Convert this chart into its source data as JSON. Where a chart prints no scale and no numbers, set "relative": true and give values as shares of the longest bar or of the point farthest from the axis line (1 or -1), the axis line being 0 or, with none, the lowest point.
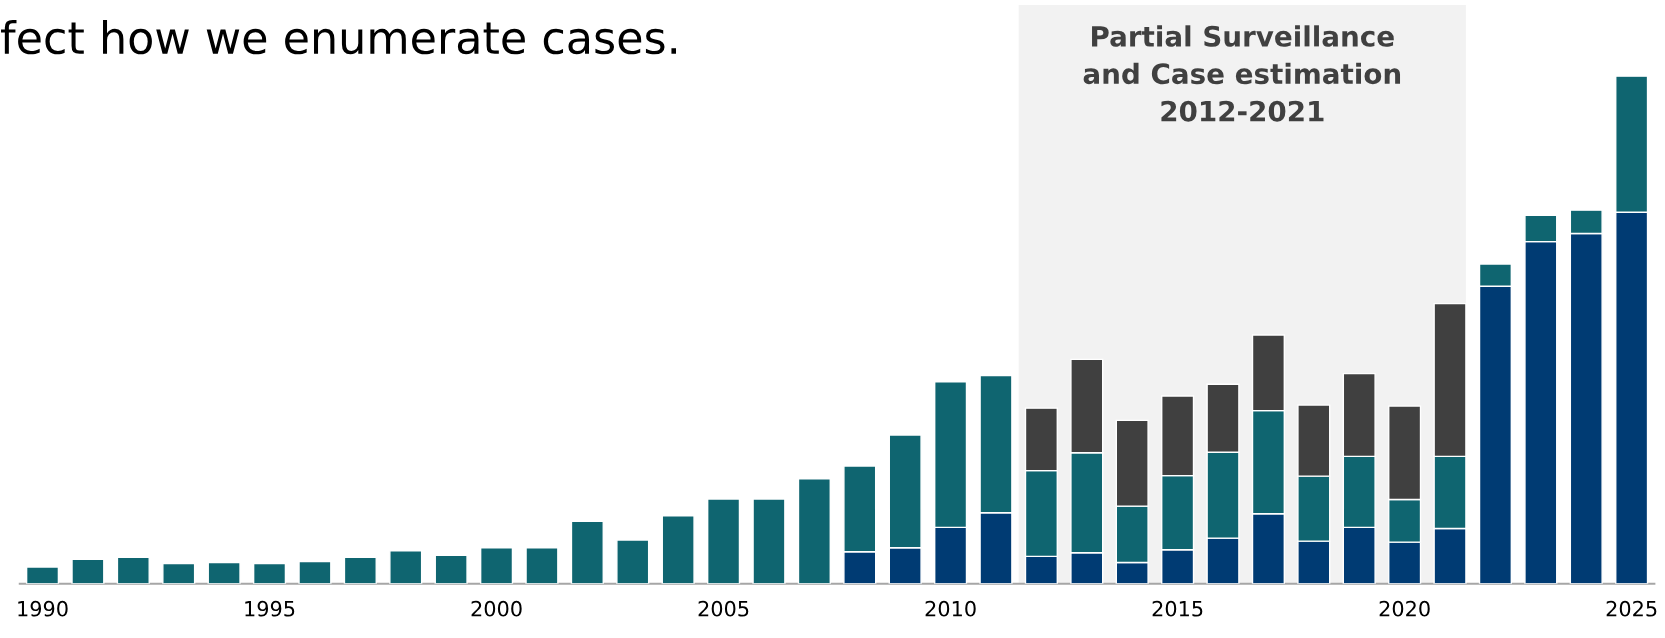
{
  "chart_data": {
    "type": "bar",
    "title": "fect how we enumerate cases.",
    "relative": true,
    "stacked": true,
    "x": [
      1990,
      1991,
      1992,
      1993,
      1994,
      1995,
      1996,
      1997,
      1998,
      1999,
      2000,
      2001,
      2002,
      2003,
      2004,
      2005,
      2006,
      2007,
      2008,
      2009,
      2010,
      2011,
      2012,
      2013,
      2014,
      2015,
      2016,
      2017,
      2018,
      2019,
      2020,
      2021,
      2022,
      2023,
      2024,
      2025
    ],
    "xlim": [
      1989.5,
      2025.5
    ],
    "xticks": [
      1990,
      1995,
      2000,
      2005,
      2010,
      2015,
      2020,
      2025
    ],
    "series": [
      {
        "color": "#003b73",
        "values": [
          null,
          null,
          null,
          null,
          null,
          null,
          null,
          null,
          null,
          null,
          null,
          null,
          null,
          null,
          null,
          null,
          null,
          null,
          0.063,
          0.071,
          0.111,
          0.14,
          0.054,
          0.061,
          0.042,
          0.067,
          0.09,
          0.138,
          0.084,
          0.111,
          0.082,
          0.109,
          0.586,
          0.674,
          0.69,
          0.732
        ]
      },
      {
        "color": "#0f6570",
        "values": [
          0.033,
          0.048,
          0.052,
          0.04,
          0.042,
          0.04,
          0.044,
          0.052,
          0.065,
          0.056,
          0.071,
          0.071,
          0.123,
          0.086,
          0.134,
          0.167,
          0.167,
          0.207,
          0.169,
          0.222,
          0.287,
          0.27,
          0.169,
          0.197,
          0.111,
          0.146,
          0.169,
          0.203,
          0.128,
          0.14,
          0.084,
          0.142,
          0.044,
          0.052,
          0.046,
          0.268
        ]
      },
      {
        "color": "#404040",
        "values": [
          null,
          null,
          null,
          null,
          null,
          null,
          null,
          null,
          null,
          null,
          null,
          null,
          null,
          null,
          null,
          null,
          null,
          null,
          null,
          null,
          null,
          null,
          0.123,
          0.184,
          0.169,
          0.157,
          0.134,
          0.149,
          0.14,
          0.163,
          0.184,
          0.301,
          null,
          null,
          null,
          null
        ]
      }
    ],
    "bands": [
      {
        "axis": "x",
        "from": 2011.5,
        "to": 2021.35,
        "label": "Partial Surveillance\nand Case estimation\n2012-2021",
        "color": "#f2f2f2"
      }
    ],
    "grid": false
  }
}
